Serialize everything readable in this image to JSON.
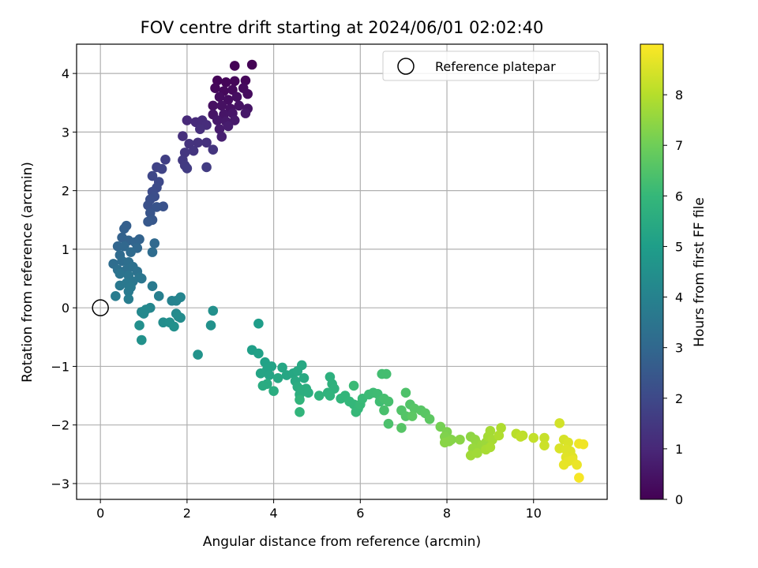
{
  "chart_data": {
    "type": "scatter",
    "title": "FOV centre drift starting at 2024/06/01 02:02:40",
    "xlabel": "Angular distance from reference (arcmin)",
    "ylabel": "Rotation from reference (arcmin)",
    "xlim": [
      -0.55,
      11.7
    ],
    "ylim": [
      -3.27,
      4.5
    ],
    "xticks": [
      0,
      2,
      4,
      6,
      8,
      10
    ],
    "yticks": [
      -3,
      -2,
      -1,
      0,
      1,
      2,
      3,
      4
    ],
    "grid": true,
    "legend": {
      "position": "top-right",
      "entries": [
        "Reference platepar"
      ]
    },
    "reference_point": {
      "x": 0,
      "y": 0
    },
    "colorbar": {
      "label": "Hours from first FF file",
      "range": [
        0,
        9
      ],
      "ticks": [
        0,
        1,
        2,
        3,
        4,
        5,
        6,
        7,
        8
      ],
      "colormap": [
        "#440154",
        "#482878",
        "#3e4989",
        "#31688e",
        "#26828e",
        "#1f9e89",
        "#35b779",
        "#6ece58",
        "#b5de2b",
        "#fde725"
      ]
    },
    "points": [
      {
        "x": 3.1,
        "y": 4.13,
        "t": 0.02
      },
      {
        "x": 3.5,
        "y": 4.15,
        "t": 0.04
      },
      {
        "x": 2.7,
        "y": 3.88,
        "t": 0.08
      },
      {
        "x": 2.9,
        "y": 3.85,
        "t": 0.1
      },
      {
        "x": 3.1,
        "y": 3.87,
        "t": 0.12
      },
      {
        "x": 3.35,
        "y": 3.88,
        "t": 0.15
      },
      {
        "x": 2.65,
        "y": 3.75,
        "t": 0.18
      },
      {
        "x": 2.85,
        "y": 3.7,
        "t": 0.2
      },
      {
        "x": 3.05,
        "y": 3.72,
        "t": 0.22
      },
      {
        "x": 3.3,
        "y": 3.75,
        "t": 0.25
      },
      {
        "x": 3.4,
        "y": 3.65,
        "t": 0.28
      },
      {
        "x": 2.75,
        "y": 3.6,
        "t": 0.3
      },
      {
        "x": 2.95,
        "y": 3.55,
        "t": 0.32
      },
      {
        "x": 3.15,
        "y": 3.6,
        "t": 0.35
      },
      {
        "x": 2.6,
        "y": 3.45,
        "t": 0.38
      },
      {
        "x": 2.8,
        "y": 3.45,
        "t": 0.4
      },
      {
        "x": 3.0,
        "y": 3.4,
        "t": 0.42
      },
      {
        "x": 3.2,
        "y": 3.45,
        "t": 0.45
      },
      {
        "x": 3.4,
        "y": 3.4,
        "t": 0.48
      },
      {
        "x": 2.6,
        "y": 3.3,
        "t": 0.5
      },
      {
        "x": 2.85,
        "y": 3.3,
        "t": 0.52
      },
      {
        "x": 3.05,
        "y": 3.32,
        "t": 0.55
      },
      {
        "x": 3.35,
        "y": 3.32,
        "t": 0.58
      },
      {
        "x": 2.7,
        "y": 3.2,
        "t": 0.6
      },
      {
        "x": 2.9,
        "y": 3.18,
        "t": 0.62
      },
      {
        "x": 3.1,
        "y": 3.2,
        "t": 0.65
      },
      {
        "x": 2.75,
        "y": 3.05,
        "t": 0.7
      },
      {
        "x": 2.95,
        "y": 3.1,
        "t": 0.72
      },
      {
        "x": 2.8,
        "y": 2.92,
        "t": 0.78
      },
      {
        "x": 2.0,
        "y": 3.2,
        "t": 1.05
      },
      {
        "x": 2.2,
        "y": 3.17,
        "t": 1.1
      },
      {
        "x": 2.35,
        "y": 3.2,
        "t": 1.12
      },
      {
        "x": 2.45,
        "y": 3.12,
        "t": 1.15
      },
      {
        "x": 2.3,
        "y": 3.05,
        "t": 1.2
      },
      {
        "x": 1.9,
        "y": 2.93,
        "t": 1.25
      },
      {
        "x": 2.45,
        "y": 2.82,
        "t": 1.3
      },
      {
        "x": 2.25,
        "y": 2.82,
        "t": 1.32
      },
      {
        "x": 2.05,
        "y": 2.8,
        "t": 1.35
      },
      {
        "x": 2.6,
        "y": 2.7,
        "t": 1.38
      },
      {
        "x": 2.15,
        "y": 2.68,
        "t": 1.4
      },
      {
        "x": 1.95,
        "y": 2.65,
        "t": 1.45
      },
      {
        "x": 1.9,
        "y": 2.52,
        "t": 1.5
      },
      {
        "x": 1.95,
        "y": 2.43,
        "t": 1.55
      },
      {
        "x": 2.0,
        "y": 2.38,
        "t": 1.58
      },
      {
        "x": 2.45,
        "y": 2.4,
        "t": 1.6
      },
      {
        "x": 1.5,
        "y": 2.53,
        "t": 1.7
      },
      {
        "x": 1.3,
        "y": 2.4,
        "t": 1.8
      },
      {
        "x": 1.42,
        "y": 2.37,
        "t": 1.85
      },
      {
        "x": 1.2,
        "y": 2.25,
        "t": 1.95
      },
      {
        "x": 1.35,
        "y": 2.15,
        "t": 2.0
      },
      {
        "x": 1.3,
        "y": 2.05,
        "t": 2.05
      },
      {
        "x": 1.2,
        "y": 1.98,
        "t": 2.1
      },
      {
        "x": 1.25,
        "y": 1.9,
        "t": 2.15
      },
      {
        "x": 1.15,
        "y": 1.85,
        "t": 2.2
      },
      {
        "x": 1.1,
        "y": 1.75,
        "t": 2.25
      },
      {
        "x": 1.45,
        "y": 1.73,
        "t": 2.3
      },
      {
        "x": 1.3,
        "y": 1.72,
        "t": 2.35
      },
      {
        "x": 1.15,
        "y": 1.62,
        "t": 2.4
      },
      {
        "x": 1.2,
        "y": 1.5,
        "t": 2.45
      },
      {
        "x": 1.1,
        "y": 1.47,
        "t": 2.5
      },
      {
        "x": 0.6,
        "y": 1.4,
        "t": 2.7
      },
      {
        "x": 0.55,
        "y": 1.35,
        "t": 2.75
      },
      {
        "x": 0.5,
        "y": 1.2,
        "t": 2.8
      },
      {
        "x": 0.65,
        "y": 1.15,
        "t": 2.85
      },
      {
        "x": 0.9,
        "y": 1.17,
        "t": 2.85
      },
      {
        "x": 0.8,
        "y": 1.12,
        "t": 2.9
      },
      {
        "x": 0.4,
        "y": 1.05,
        "t": 2.95
      },
      {
        "x": 0.55,
        "y": 1.05,
        "t": 3.0
      },
      {
        "x": 0.85,
        "y": 1.02,
        "t": 3.0
      },
      {
        "x": 1.25,
        "y": 1.1,
        "t": 3.05
      },
      {
        "x": 0.45,
        "y": 0.9,
        "t": 3.1
      },
      {
        "x": 0.7,
        "y": 0.95,
        "t": 3.1
      },
      {
        "x": 1.2,
        "y": 0.95,
        "t": 3.15
      },
      {
        "x": 0.3,
        "y": 0.75,
        "t": 3.2
      },
      {
        "x": 0.5,
        "y": 0.8,
        "t": 3.2
      },
      {
        "x": 0.65,
        "y": 0.78,
        "t": 3.25
      },
      {
        "x": 0.4,
        "y": 0.65,
        "t": 3.3
      },
      {
        "x": 0.6,
        "y": 0.65,
        "t": 3.3
      },
      {
        "x": 0.75,
        "y": 0.7,
        "t": 3.35
      },
      {
        "x": 0.85,
        "y": 0.62,
        "t": 3.4
      },
      {
        "x": 0.45,
        "y": 0.58,
        "t": 3.45
      },
      {
        "x": 0.65,
        "y": 0.55,
        "t": 3.5
      },
      {
        "x": 0.9,
        "y": 0.52,
        "t": 3.5
      },
      {
        "x": 0.95,
        "y": 0.5,
        "t": 3.55
      },
      {
        "x": 0.75,
        "y": 0.45,
        "t": 3.55
      },
      {
        "x": 0.6,
        "y": 0.42,
        "t": 3.6
      },
      {
        "x": 0.45,
        "y": 0.38,
        "t": 3.6
      },
      {
        "x": 0.7,
        "y": 0.35,
        "t": 3.65
      },
      {
        "x": 1.2,
        "y": 0.37,
        "t": 3.7
      },
      {
        "x": 0.65,
        "y": 0.28,
        "t": 3.7
      },
      {
        "x": 0.35,
        "y": 0.2,
        "t": 3.75
      },
      {
        "x": 0.65,
        "y": 0.15,
        "t": 3.8
      },
      {
        "x": 1.35,
        "y": 0.2,
        "t": 3.9
      },
      {
        "x": 1.65,
        "y": 0.12,
        "t": 4.0
      },
      {
        "x": 1.75,
        "y": 0.12,
        "t": 4.05
      },
      {
        "x": 1.85,
        "y": 0.18,
        "t": 4.1
      },
      {
        "x": 1.15,
        "y": 0.0,
        "t": 4.15
      },
      {
        "x": 1.05,
        "y": -0.03,
        "t": 4.2
      },
      {
        "x": 0.95,
        "y": -0.07,
        "t": 4.2
      },
      {
        "x": 1.0,
        "y": -0.1,
        "t": 4.25
      },
      {
        "x": 1.75,
        "y": -0.1,
        "t": 4.3
      },
      {
        "x": 1.8,
        "y": -0.15,
        "t": 4.35
      },
      {
        "x": 1.85,
        "y": -0.17,
        "t": 4.35
      },
      {
        "x": 1.45,
        "y": -0.25,
        "t": 4.4
      },
      {
        "x": 1.6,
        "y": -0.25,
        "t": 4.45
      },
      {
        "x": 0.9,
        "y": -0.3,
        "t": 4.45
      },
      {
        "x": 1.7,
        "y": -0.32,
        "t": 4.5
      },
      {
        "x": 2.6,
        "y": -0.05,
        "t": 4.5
      },
      {
        "x": 2.55,
        "y": -0.3,
        "t": 4.55
      },
      {
        "x": 0.95,
        "y": -0.55,
        "t": 4.55
      },
      {
        "x": 2.25,
        "y": -0.8,
        "t": 4.6
      },
      {
        "x": 3.65,
        "y": -0.27,
        "t": 4.95
      },
      {
        "x": 3.5,
        "y": -0.72,
        "t": 5.05
      },
      {
        "x": 3.65,
        "y": -0.78,
        "t": 5.1
      },
      {
        "x": 3.8,
        "y": -0.93,
        "t": 5.15
      },
      {
        "x": 3.95,
        "y": -1.0,
        "t": 5.2
      },
      {
        "x": 3.85,
        "y": -1.05,
        "t": 5.2
      },
      {
        "x": 3.7,
        "y": -1.12,
        "t": 5.25
      },
      {
        "x": 3.9,
        "y": -1.15,
        "t": 5.25
      },
      {
        "x": 4.2,
        "y": -1.02,
        "t": 5.3
      },
      {
        "x": 4.3,
        "y": -1.15,
        "t": 5.3
      },
      {
        "x": 4.1,
        "y": -1.2,
        "t": 5.35
      },
      {
        "x": 4.45,
        "y": -1.12,
        "t": 5.35
      },
      {
        "x": 4.55,
        "y": -1.08,
        "t": 5.4
      },
      {
        "x": 4.65,
        "y": -0.98,
        "t": 5.4
      },
      {
        "x": 4.5,
        "y": -1.25,
        "t": 5.45
      },
      {
        "x": 4.7,
        "y": -1.2,
        "t": 5.45
      },
      {
        "x": 3.85,
        "y": -1.3,
        "t": 5.5
      },
      {
        "x": 3.75,
        "y": -1.33,
        "t": 5.5
      },
      {
        "x": 4.55,
        "y": -1.35,
        "t": 5.55
      },
      {
        "x": 4.0,
        "y": -1.42,
        "t": 5.55
      },
      {
        "x": 4.65,
        "y": -1.4,
        "t": 5.6
      },
      {
        "x": 4.75,
        "y": -1.38,
        "t": 5.6
      },
      {
        "x": 4.6,
        "y": -1.48,
        "t": 5.65
      },
      {
        "x": 4.8,
        "y": -1.45,
        "t": 5.65
      },
      {
        "x": 5.3,
        "y": -1.18,
        "t": 5.7
      },
      {
        "x": 5.35,
        "y": -1.3,
        "t": 5.72
      },
      {
        "x": 5.4,
        "y": -1.38,
        "t": 5.75
      },
      {
        "x": 5.25,
        "y": -1.45,
        "t": 5.78
      },
      {
        "x": 5.05,
        "y": -1.5,
        "t": 5.8
      },
      {
        "x": 5.3,
        "y": -1.5,
        "t": 5.82
      },
      {
        "x": 4.6,
        "y": -1.57,
        "t": 5.85
      },
      {
        "x": 4.6,
        "y": -1.78,
        "t": 5.88
      },
      {
        "x": 5.55,
        "y": -1.55,
        "t": 5.9
      },
      {
        "x": 5.65,
        "y": -1.5,
        "t": 5.92
      },
      {
        "x": 5.75,
        "y": -1.6,
        "t": 5.95
      },
      {
        "x": 5.85,
        "y": -1.65,
        "t": 5.97
      },
      {
        "x": 5.95,
        "y": -1.72,
        "t": 6.0
      },
      {
        "x": 5.9,
        "y": -1.78,
        "t": 6.02
      },
      {
        "x": 6.0,
        "y": -1.65,
        "t": 6.05
      },
      {
        "x": 6.05,
        "y": -1.55,
        "t": 6.07
      },
      {
        "x": 5.85,
        "y": -1.33,
        "t": 6.1
      },
      {
        "x": 6.2,
        "y": -1.48,
        "t": 6.12
      },
      {
        "x": 6.3,
        "y": -1.45,
        "t": 6.15
      },
      {
        "x": 6.4,
        "y": -1.47,
        "t": 6.17
      },
      {
        "x": 6.45,
        "y": -1.6,
        "t": 6.2
      },
      {
        "x": 6.5,
        "y": -1.13,
        "t": 6.25
      },
      {
        "x": 6.6,
        "y": -1.13,
        "t": 6.27
      },
      {
        "x": 6.55,
        "y": -1.55,
        "t": 6.3
      },
      {
        "x": 6.65,
        "y": -1.6,
        "t": 6.32
      },
      {
        "x": 6.55,
        "y": -1.75,
        "t": 6.35
      },
      {
        "x": 6.65,
        "y": -1.98,
        "t": 6.4
      },
      {
        "x": 7.05,
        "y": -1.45,
        "t": 6.45
      },
      {
        "x": 6.95,
        "y": -1.75,
        "t": 6.5
      },
      {
        "x": 7.15,
        "y": -1.65,
        "t": 6.52
      },
      {
        "x": 7.05,
        "y": -1.85,
        "t": 6.55
      },
      {
        "x": 6.95,
        "y": -2.05,
        "t": 6.58
      },
      {
        "x": 7.25,
        "y": -1.72,
        "t": 6.6
      },
      {
        "x": 7.4,
        "y": -1.75,
        "t": 6.62
      },
      {
        "x": 7.5,
        "y": -1.8,
        "t": 6.65
      },
      {
        "x": 7.2,
        "y": -1.85,
        "t": 6.68
      },
      {
        "x": 7.6,
        "y": -1.9,
        "t": 6.7
      },
      {
        "x": 7.85,
        "y": -2.03,
        "t": 7.1
      },
      {
        "x": 8.0,
        "y": -2.12,
        "t": 7.2
      },
      {
        "x": 7.95,
        "y": -2.2,
        "t": 7.25
      },
      {
        "x": 8.1,
        "y": -2.25,
        "t": 7.3
      },
      {
        "x": 8.05,
        "y": -2.28,
        "t": 7.35
      },
      {
        "x": 7.95,
        "y": -2.3,
        "t": 7.38
      },
      {
        "x": 8.3,
        "y": -2.25,
        "t": 7.4
      },
      {
        "x": 8.55,
        "y": -2.2,
        "t": 7.45
      },
      {
        "x": 8.65,
        "y": -2.25,
        "t": 7.5
      },
      {
        "x": 8.7,
        "y": -2.32,
        "t": 7.55
      },
      {
        "x": 8.6,
        "y": -2.4,
        "t": 7.6
      },
      {
        "x": 8.8,
        "y": -2.35,
        "t": 7.62
      },
      {
        "x": 8.9,
        "y": -2.3,
        "t": 7.65
      },
      {
        "x": 8.55,
        "y": -2.52,
        "t": 7.7
      },
      {
        "x": 8.7,
        "y": -2.48,
        "t": 7.72
      },
      {
        "x": 8.95,
        "y": -2.2,
        "t": 7.75
      },
      {
        "x": 9.0,
        "y": -2.1,
        "t": 7.78
      },
      {
        "x": 9.05,
        "y": -2.25,
        "t": 7.8
      },
      {
        "x": 8.9,
        "y": -2.42,
        "t": 7.82
      },
      {
        "x": 9.0,
        "y": -2.38,
        "t": 7.85
      },
      {
        "x": 9.25,
        "y": -2.05,
        "t": 7.9
      },
      {
        "x": 9.2,
        "y": -2.18,
        "t": 7.92
      },
      {
        "x": 9.6,
        "y": -2.15,
        "t": 8.05
      },
      {
        "x": 9.75,
        "y": -2.18,
        "t": 8.1
      },
      {
        "x": 9.7,
        "y": -2.2,
        "t": 8.15
      },
      {
        "x": 10.0,
        "y": -2.22,
        "t": 8.2
      },
      {
        "x": 10.25,
        "y": -2.22,
        "t": 8.25
      },
      {
        "x": 10.25,
        "y": -2.35,
        "t": 8.3
      },
      {
        "x": 10.6,
        "y": -1.97,
        "t": 8.4
      },
      {
        "x": 10.7,
        "y": -2.25,
        "t": 8.45
      },
      {
        "x": 10.8,
        "y": -2.3,
        "t": 8.5
      },
      {
        "x": 10.6,
        "y": -2.4,
        "t": 8.5
      },
      {
        "x": 10.75,
        "y": -2.42,
        "t": 8.55
      },
      {
        "x": 10.85,
        "y": -2.45,
        "t": 8.55
      },
      {
        "x": 10.75,
        "y": -2.55,
        "t": 8.6
      },
      {
        "x": 10.9,
        "y": -2.55,
        "t": 8.6
      },
      {
        "x": 10.8,
        "y": -2.62,
        "t": 8.65
      },
      {
        "x": 10.7,
        "y": -2.68,
        "t": 8.7
      },
      {
        "x": 10.9,
        "y": -2.6,
        "t": 8.7
      },
      {
        "x": 11.0,
        "y": -2.68,
        "t": 8.75
      },
      {
        "x": 11.05,
        "y": -2.32,
        "t": 8.8
      },
      {
        "x": 11.15,
        "y": -2.33,
        "t": 8.82
      },
      {
        "x": 11.05,
        "y": -2.9,
        "t": 8.9
      }
    ]
  }
}
